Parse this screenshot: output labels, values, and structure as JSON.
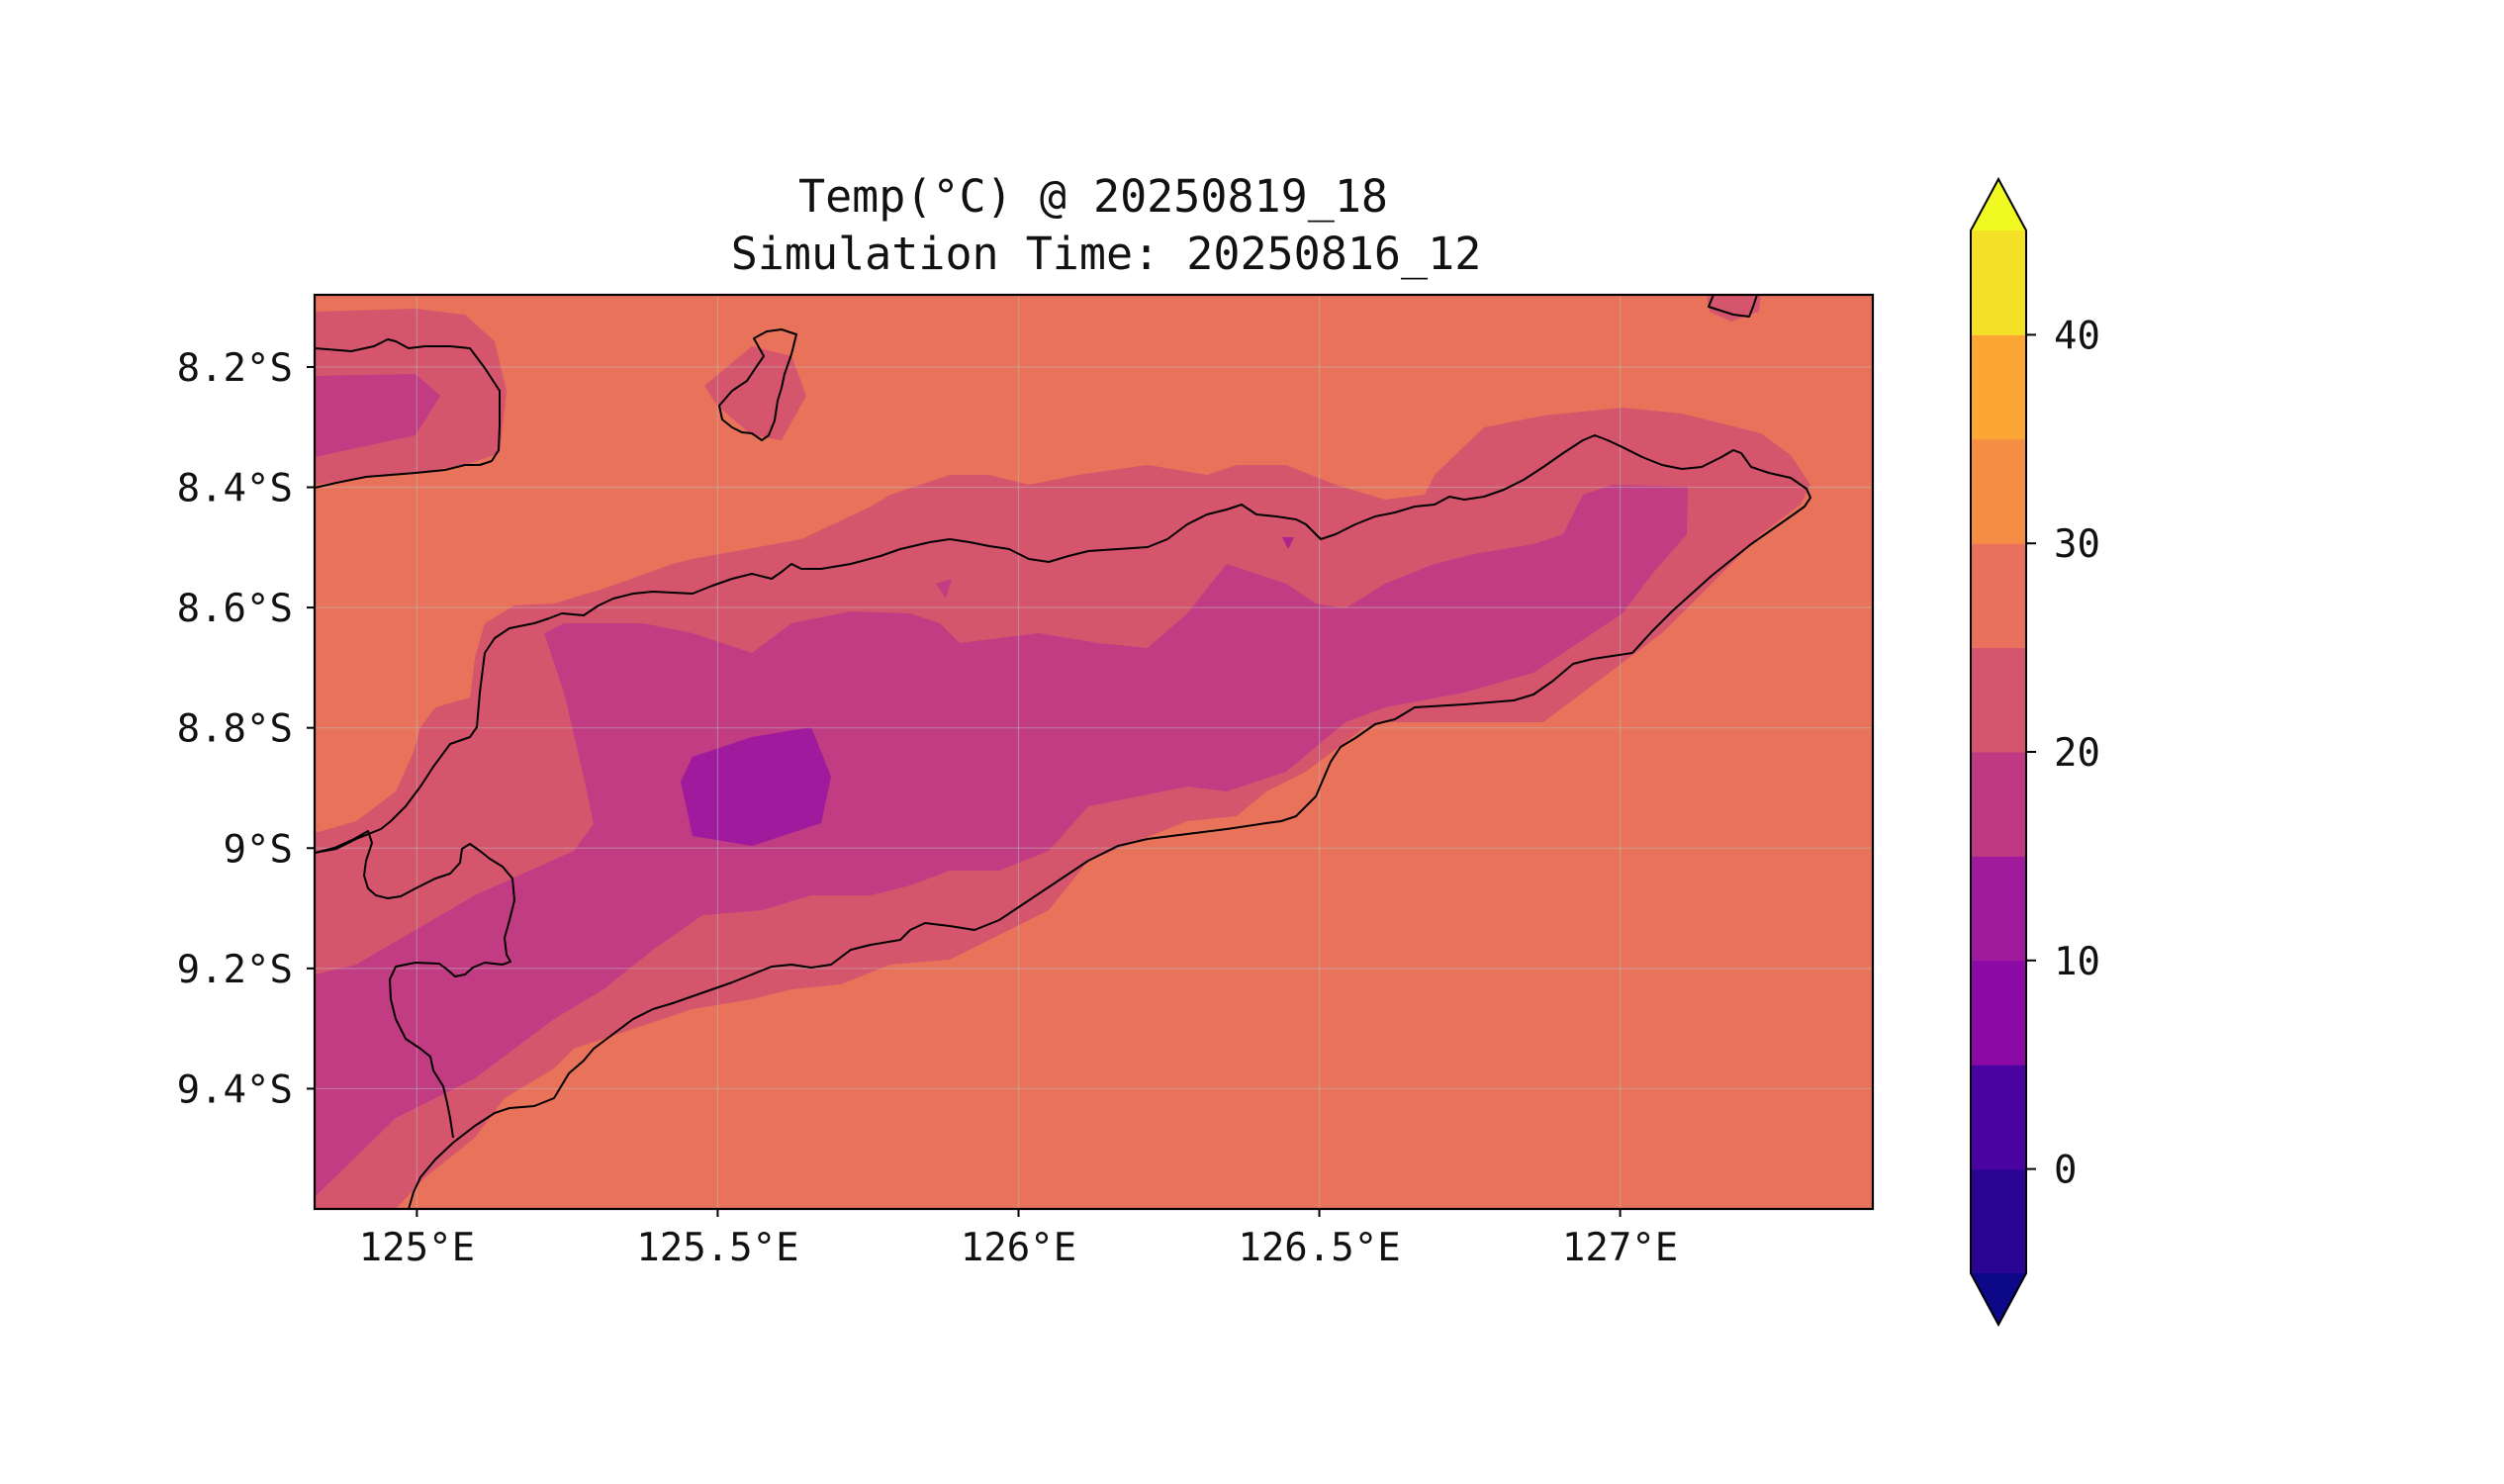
{
  "title": {
    "line1": "Temp(°C) @ 20250819_18",
    "line2": "Simulation Time: 20250816_12"
  },
  "map": {
    "lon_range": [
      124.83,
      127.42
    ],
    "lat_range": [
      -9.6,
      -8.08
    ],
    "lon_ticks": [
      {
        "value": 125.0,
        "label": "125°E"
      },
      {
        "value": 125.5,
        "label": "125.5°E"
      },
      {
        "value": 126.0,
        "label": "126°E"
      },
      {
        "value": 126.5,
        "label": "126.5°E"
      },
      {
        "value": 127.0,
        "label": "127°E"
      }
    ],
    "lat_ticks": [
      {
        "value": -8.2,
        "label": "8.2°S"
      },
      {
        "value": -8.4,
        "label": "8.4°S"
      },
      {
        "value": -8.6,
        "label": "8.6°S"
      },
      {
        "value": -8.8,
        "label": "8.8°S"
      },
      {
        "value": -9.0,
        "label": "9°S"
      },
      {
        "value": -9.2,
        "label": "9.2°S"
      },
      {
        "value": -9.4,
        "label": "9.4°S"
      }
    ],
    "gridlines": true,
    "coastline_color": "#000000"
  },
  "colorbar": {
    "colormap": "plasma",
    "levels": [
      -5,
      0,
      5,
      10,
      15,
      20,
      25,
      30,
      35,
      40,
      45
    ],
    "tick_values": [
      0,
      10,
      20,
      30,
      40
    ],
    "tick_labels": [
      "0",
      "10",
      "20",
      "30",
      "40"
    ],
    "extend": "both",
    "under_color": "#0d0887",
    "over_color": "#f0f921",
    "bin_colors": [
      "#2a0593",
      "#4903a0",
      "#8b0aa5",
      "#a01a9c",
      "#c03a83",
      "#d5546e",
      "#e8705c",
      "#f68d45",
      "#fca636",
      "#f3e027"
    ]
  },
  "legend": {
    "placement": "right"
  }
}
